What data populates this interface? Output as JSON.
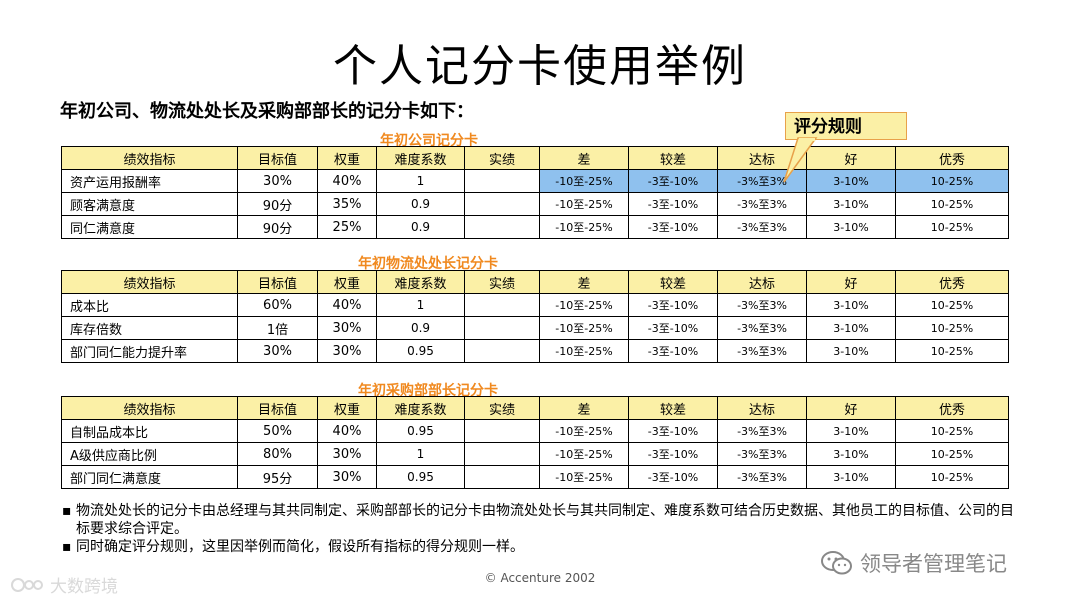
{
  "title": "个人记分卡使用举例",
  "intro": "年初公司、物流处处长及采购部部长的记分卡如下：",
  "callout": "评分规则",
  "headers": [
    "绩效指标",
    "目标值",
    "权重",
    "难度系数",
    "实绩",
    "差",
    "较差",
    "达标",
    "好",
    "优秀"
  ],
  "bands": [
    "-10至-25%",
    "-3至-10%",
    "-3%至3%",
    "3-10%",
    "10-25%"
  ],
  "cards": [
    {
      "caption": "年初公司记分卡",
      "rows": [
        {
          "name": "资产运用报酬率",
          "target": "30%",
          "weight": "40%",
          "difficulty": "1",
          "actual": ""
        },
        {
          "name": "顾客满意度",
          "target": "90分",
          "weight": "35%",
          "difficulty": "0.9",
          "actual": ""
        },
        {
          "name": "同仁满意度",
          "target": "90分",
          "weight": "25%",
          "difficulty": "0.9",
          "actual": ""
        }
      ]
    },
    {
      "caption": "年初物流处处长记分卡",
      "rows": [
        {
          "name": "成本比",
          "target": "60%",
          "weight": "40%",
          "difficulty": "1",
          "actual": ""
        },
        {
          "name": "库存倍数",
          "target": "1倍",
          "weight": "30%",
          "difficulty": "0.9",
          "actual": ""
        },
        {
          "name": "部门同仁能力提升率",
          "target": "30%",
          "weight": "30%",
          "difficulty": "0.95",
          "actual": ""
        }
      ]
    },
    {
      "caption": "年初采购部部长记分卡",
      "rows": [
        {
          "name": "自制品成本比",
          "target": "50%",
          "weight": "40%",
          "difficulty": "0.95",
          "actual": ""
        },
        {
          "name": "A级供应商比例",
          "target": "80%",
          "weight": "30%",
          "difficulty": "1",
          "actual": ""
        },
        {
          "name": "部门同仁满意度",
          "target": "95分",
          "weight": "30%",
          "difficulty": "0.95",
          "actual": ""
        }
      ]
    }
  ],
  "notes": [
    "物流处处长的记分卡由总经理与其共同制定、采购部部长的记分卡由物流处处长与其共同制定、难度系数可结合历史数据、其他员工的目标值、公司的目标要求综合评定。",
    "同时确定评分规则，这里因举例而简化，假设所有指标的得分规则一样。"
  ],
  "bullet": "▪",
  "copyright": "© Accenture 2002",
  "watermark_left": "大数跨境",
  "watermark_right": "领导者管理笔记",
  "colors": {
    "header_fill": "#fbf0a6",
    "highlight_fill": "#8fc1ee",
    "caption": "#f0891f",
    "callout_border": "#e8a14a"
  }
}
